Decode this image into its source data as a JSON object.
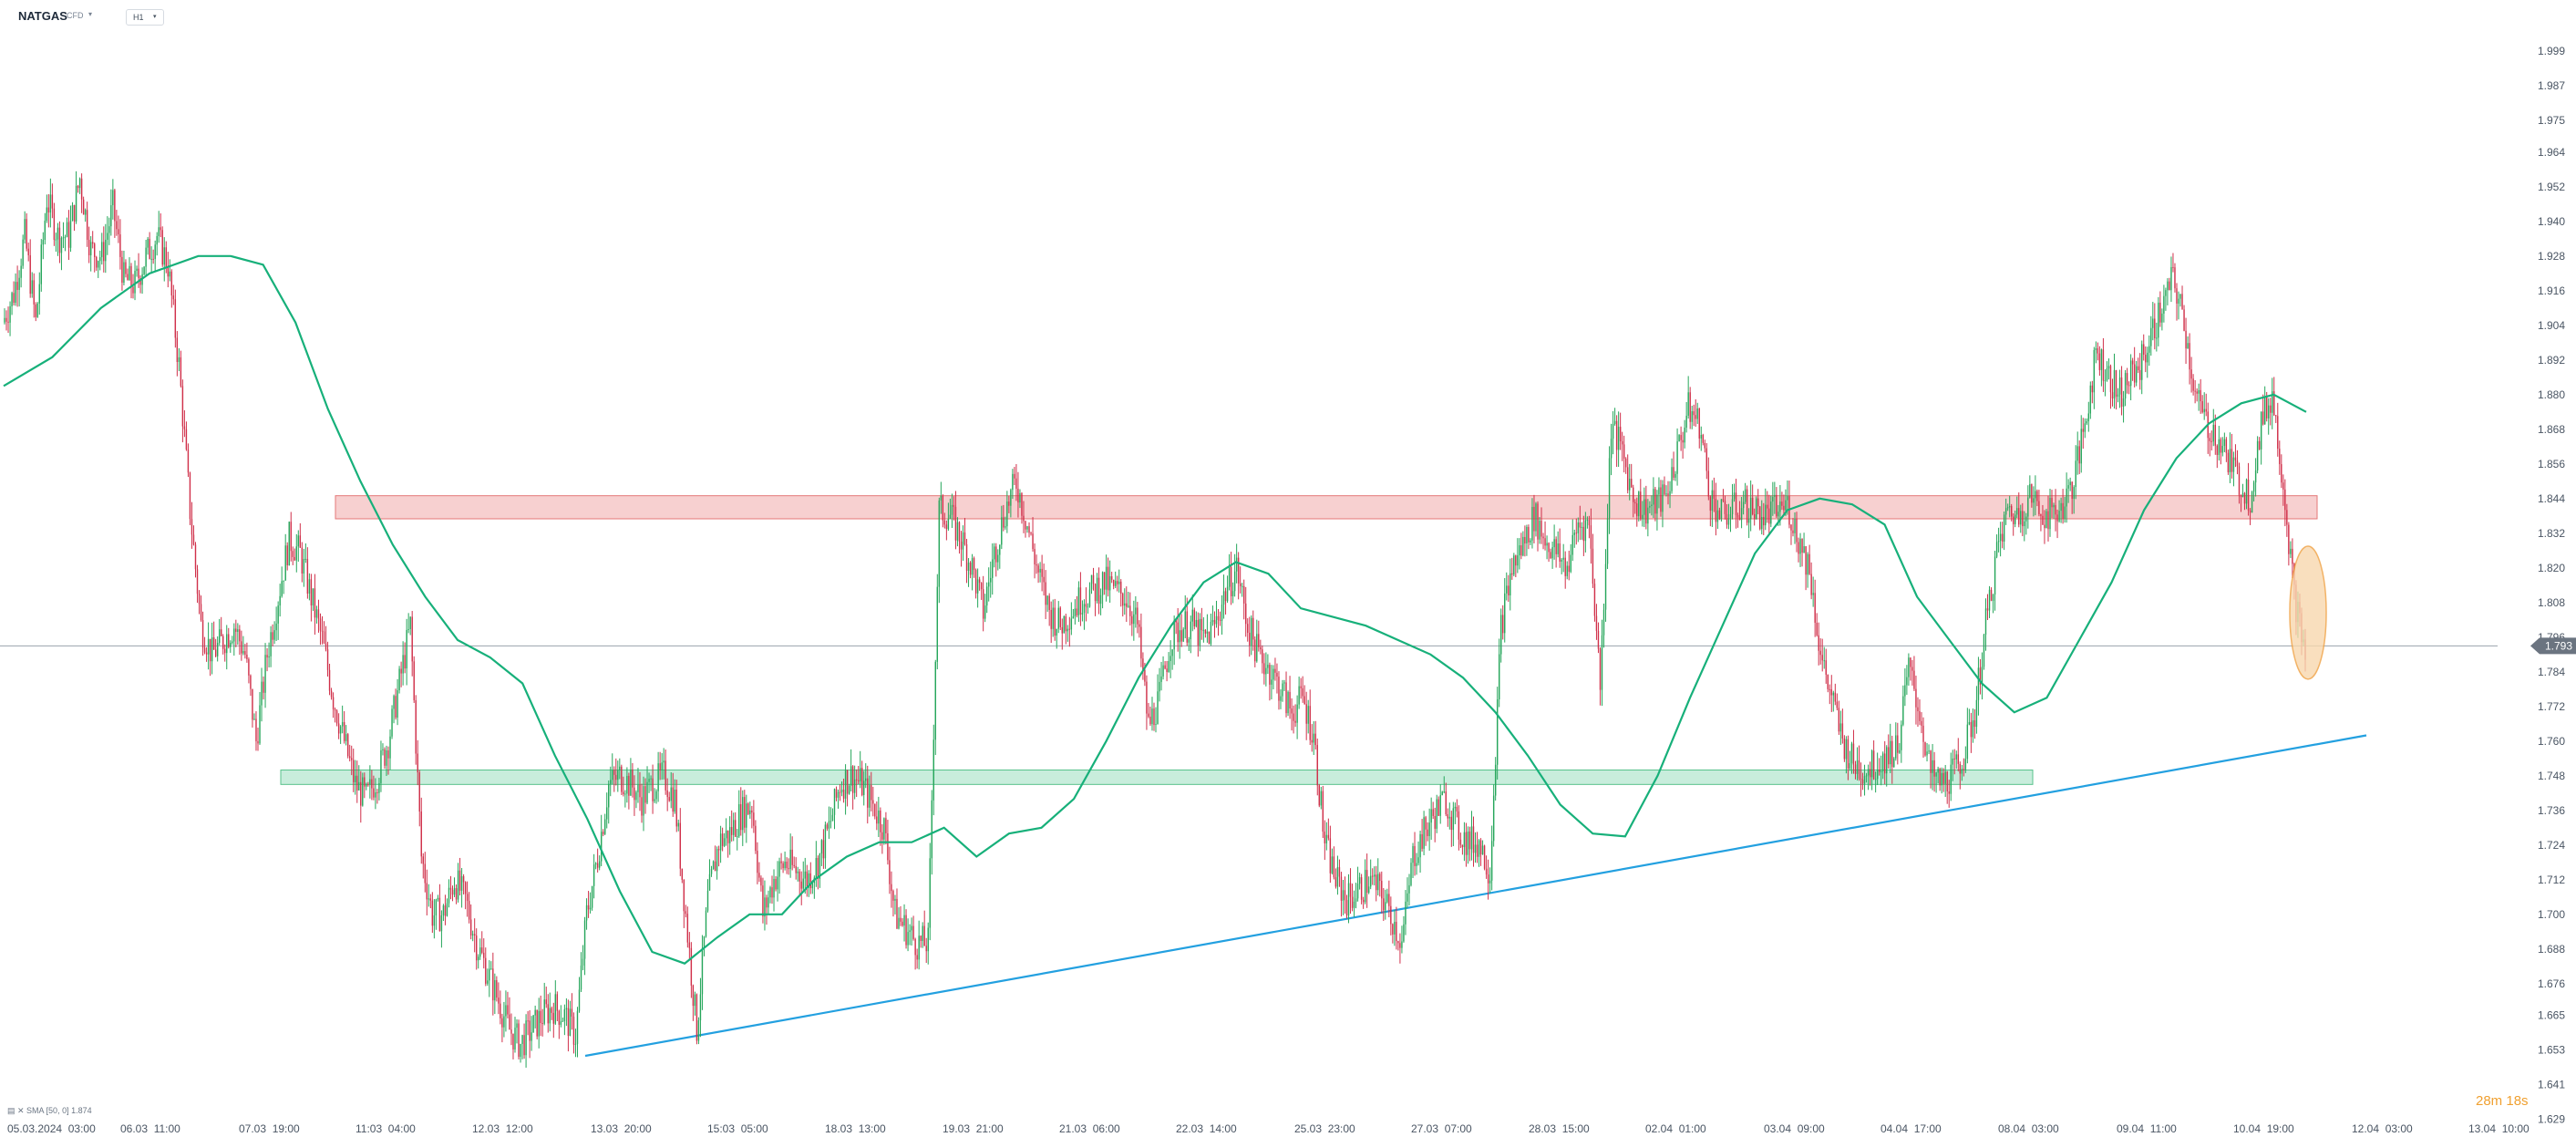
{
  "header": {
    "symbol": "NATGAS",
    "symbol_type": "CFD",
    "timeframe": "H1"
  },
  "indicator_legend": "SMA [50, 0] 1.874",
  "countdown": "28m 18s",
  "current_price_label": "1.793",
  "colors": {
    "bull": "#26a65b",
    "bear": "#d0304a",
    "sma": "#17b07a",
    "trendline": "#23a0e0",
    "resistance_fill": "#f6c8c8",
    "resistance_stroke": "#e06060",
    "support_fill": "#bfead6",
    "support_stroke": "#3cb878",
    "highlight_fill": "#f8d8ae",
    "highlight_stroke": "#f0a040",
    "price_badge": "#6b7480"
  },
  "chart_data": {
    "type": "candlestick",
    "timeframe": "H1",
    "y_ticks": [
      "1.999",
      "1.987",
      "1.975",
      "1.964",
      "1.952",
      "1.940",
      "1.928",
      "1.916",
      "1.904",
      "1.892",
      "1.880",
      "1.868",
      "1.856",
      "1.844",
      "1.832",
      "1.820",
      "1.808",
      "1.796",
      "1.784",
      "1.772",
      "1.760",
      "1.748",
      "1.736",
      "1.724",
      "1.712",
      "1.700",
      "1.688",
      "1.676",
      "1.665",
      "1.653",
      "1.641",
      "1.629"
    ],
    "x_ticks": [
      "05.03.2024  03:00",
      "06.03  11:00",
      "07.03  19:00",
      "11:03  04:00",
      "12.03  12:00",
      "13.03  20:00",
      "15:03  05:00",
      "18.03  13:00",
      "19.03  21:00",
      "21.03  06:00",
      "22.03  14:00",
      "25.03  23:00",
      "27.03  07:00",
      "28.03  15:00",
      "02.04  01:00",
      "03.04  09:00",
      "04.04  17:00",
      "08.04  03:00",
      "09.04  11:00",
      "10.04  19:00",
      "12.04  03:00",
      "13.04  10:00"
    ],
    "y_range": [
      1.629,
      2.005
    ],
    "current_price": 1.793,
    "resistance_zone": [
      1.837,
      1.845
    ],
    "support_zone": [
      1.745,
      1.75
    ],
    "trendline": {
      "from_price": 1.651,
      "to_price": 1.762
    },
    "price_path": [
      [
        0,
        1.905
      ],
      [
        1,
        1.915
      ],
      [
        2,
        1.935
      ],
      [
        3,
        1.905
      ],
      [
        4,
        1.948
      ],
      [
        5,
        1.935
      ],
      [
        6,
        1.935
      ],
      [
        7,
        1.955
      ],
      [
        8,
        1.93
      ],
      [
        9,
        1.928
      ],
      [
        10,
        1.945
      ],
      [
        11,
        1.92
      ],
      [
        12,
        1.918
      ],
      [
        13,
        1.928
      ],
      [
        14,
        1.935
      ],
      [
        15,
        1.925
      ],
      [
        16,
        1.89
      ],
      [
        17,
        1.84
      ],
      [
        18,
        1.8
      ],
      [
        19,
        1.79
      ],
      [
        20,
        1.795
      ],
      [
        21,
        1.8
      ],
      [
        22,
        1.79
      ],
      [
        23,
        1.76
      ],
      [
        24,
        1.79
      ],
      [
        25,
        1.81
      ],
      [
        26,
        1.83
      ],
      [
        27,
        1.825
      ],
      [
        28,
        1.81
      ],
      [
        29,
        1.795
      ],
      [
        30,
        1.775
      ],
      [
        31,
        1.76
      ],
      [
        32,
        1.745
      ],
      [
        33,
        1.74
      ],
      [
        34,
        1.748
      ],
      [
        35,
        1.76
      ],
      [
        36,
        1.78
      ],
      [
        37,
        1.8
      ],
      [
        38,
        1.72
      ],
      [
        39,
        1.7
      ],
      [
        40,
        1.7
      ],
      [
        41,
        1.712
      ],
      [
        42,
        1.705
      ],
      [
        43,
        1.69
      ],
      [
        44,
        1.68
      ],
      [
        45,
        1.67
      ],
      [
        46,
        1.66
      ],
      [
        47,
        1.655
      ],
      [
        48,
        1.66
      ],
      [
        49,
        1.665
      ],
      [
        50,
        1.668
      ],
      [
        51,
        1.665
      ],
      [
        52,
        1.658
      ],
      [
        53,
        1.7
      ],
      [
        54,
        1.72
      ],
      [
        55,
        1.745
      ],
      [
        56,
        1.748
      ],
      [
        57,
        1.745
      ],
      [
        58,
        1.74
      ],
      [
        59,
        1.745
      ],
      [
        60,
        1.748
      ],
      [
        61,
        1.74
      ],
      [
        62,
        1.7
      ],
      [
        63,
        1.66
      ],
      [
        64,
        1.705
      ],
      [
        65,
        1.725
      ],
      [
        66,
        1.728
      ],
      [
        67,
        1.735
      ],
      [
        68,
        1.738
      ],
      [
        69,
        1.7
      ],
      [
        70,
        1.712
      ],
      [
        71,
        1.718
      ],
      [
        72,
        1.715
      ],
      [
        73,
        1.712
      ],
      [
        74,
        1.718
      ],
      [
        75,
        1.73
      ],
      [
        76,
        1.745
      ],
      [
        77,
        1.748
      ],
      [
        78,
        1.745
      ],
      [
        79,
        1.738
      ],
      [
        80,
        1.73
      ],
      [
        81,
        1.7
      ],
      [
        82,
        1.695
      ],
      [
        83,
        1.69
      ],
      [
        84,
        1.69
      ],
      [
        85,
        1.84
      ],
      [
        86,
        1.838
      ],
      [
        87,
        1.83
      ],
      [
        88,
        1.82
      ],
      [
        89,
        1.805
      ],
      [
        90,
        1.825
      ],
      [
        91,
        1.84
      ],
      [
        92,
        1.85
      ],
      [
        93,
        1.835
      ],
      [
        94,
        1.818
      ],
      [
        95,
        1.805
      ],
      [
        96,
        1.8
      ],
      [
        97,
        1.805
      ],
      [
        98,
        1.81
      ],
      [
        99,
        1.812
      ],
      [
        100,
        1.815
      ],
      [
        101,
        1.812
      ],
      [
        102,
        1.81
      ],
      [
        103,
        1.8
      ],
      [
        104,
        1.765
      ],
      [
        105,
        1.775
      ],
      [
        106,
        1.795
      ],
      [
        107,
        1.8
      ],
      [
        108,
        1.8
      ],
      [
        109,
        1.795
      ],
      [
        110,
        1.8
      ],
      [
        111,
        1.812
      ],
      [
        112,
        1.82
      ],
      [
        113,
        1.8
      ],
      [
        114,
        1.79
      ],
      [
        115,
        1.785
      ],
      [
        116,
        1.778
      ],
      [
        117,
        1.77
      ],
      [
        118,
        1.775
      ],
      [
        119,
        1.762
      ],
      [
        120,
        1.725
      ],
      [
        121,
        1.712
      ],
      [
        122,
        1.705
      ],
      [
        123,
        1.708
      ],
      [
        124,
        1.712
      ],
      [
        125,
        1.708
      ],
      [
        126,
        1.7
      ],
      [
        127,
        1.69
      ],
      [
        128,
        1.72
      ],
      [
        129,
        1.728
      ],
      [
        130,
        1.735
      ],
      [
        131,
        1.74
      ],
      [
        132,
        1.73
      ],
      [
        133,
        1.725
      ],
      [
        134,
        1.725
      ],
      [
        135,
        1.715
      ],
      [
        136,
        1.8
      ],
      [
        137,
        1.82
      ],
      [
        138,
        1.828
      ],
      [
        139,
        1.838
      ],
      [
        140,
        1.83
      ],
      [
        141,
        1.825
      ],
      [
        142,
        1.82
      ],
      [
        143,
        1.835
      ],
      [
        144,
        1.835
      ],
      [
        145,
        1.78
      ],
      [
        146,
        1.87
      ],
      [
        147,
        1.86
      ],
      [
        148,
        1.845
      ],
      [
        149,
        1.84
      ],
      [
        150,
        1.842
      ],
      [
        151,
        1.845
      ],
      [
        152,
        1.86
      ],
      [
        153,
        1.875
      ],
      [
        154,
        1.87
      ],
      [
        155,
        1.845
      ],
      [
        156,
        1.838
      ],
      [
        157,
        1.84
      ],
      [
        158,
        1.842
      ],
      [
        159,
        1.84
      ],
      [
        160,
        1.838
      ],
      [
        161,
        1.84
      ],
      [
        162,
        1.842
      ],
      [
        163,
        1.83
      ],
      [
        164,
        1.82
      ],
      [
        165,
        1.79
      ],
      [
        166,
        1.775
      ],
      [
        167,
        1.76
      ],
      [
        168,
        1.752
      ],
      [
        169,
        1.75
      ],
      [
        170,
        1.752
      ],
      [
        171,
        1.755
      ],
      [
        172,
        1.758
      ],
      [
        173,
        1.785
      ],
      [
        174,
        1.77
      ],
      [
        175,
        1.748
      ],
      [
        176,
        1.745
      ],
      [
        177,
        1.748
      ],
      [
        178,
        1.755
      ],
      [
        179,
        1.77
      ],
      [
        180,
        1.8
      ],
      [
        181,
        1.825
      ],
      [
        182,
        1.84
      ],
      [
        183,
        1.838
      ],
      [
        184,
        1.845
      ],
      [
        185,
        1.84
      ],
      [
        186,
        1.838
      ],
      [
        187,
        1.842
      ],
      [
        188,
        1.85
      ],
      [
        189,
        1.87
      ],
      [
        190,
        1.895
      ],
      [
        191,
        1.888
      ],
      [
        192,
        1.88
      ],
      [
        193,
        1.885
      ],
      [
        194,
        1.89
      ],
      [
        195,
        1.9
      ],
      [
        196,
        1.91
      ],
      [
        197,
        1.92
      ],
      [
        198,
        1.905
      ],
      [
        199,
        1.88
      ],
      [
        200,
        1.87
      ],
      [
        201,
        1.865
      ],
      [
        202,
        1.858
      ],
      [
        203,
        1.85
      ],
      [
        204,
        1.845
      ],
      [
        205,
        1.87
      ],
      [
        206,
        1.88
      ],
      [
        207,
        1.85
      ],
      [
        208,
        1.81
      ],
      [
        209,
        1.79
      ]
    ],
    "sma_path": [
      [
        0,
        1.883
      ],
      [
        6,
        1.893
      ],
      [
        12,
        1.91
      ],
      [
        18,
        1.922
      ],
      [
        24,
        1.928
      ],
      [
        28,
        1.928
      ],
      [
        32,
        1.925
      ],
      [
        36,
        1.905
      ],
      [
        40,
        1.875
      ],
      [
        44,
        1.85
      ],
      [
        48,
        1.828
      ],
      [
        52,
        1.81
      ],
      [
        56,
        1.795
      ],
      [
        60,
        1.789
      ],
      [
        64,
        1.78
      ],
      [
        68,
        1.755
      ],
      [
        72,
        1.733
      ],
      [
        76,
        1.708
      ],
      [
        80,
        1.687
      ],
      [
        84,
        1.683
      ],
      [
        88,
        1.692
      ],
      [
        92,
        1.7
      ],
      [
        96,
        1.7
      ],
      [
        100,
        1.712
      ],
      [
        104,
        1.72
      ],
      [
        108,
        1.725
      ],
      [
        112,
        1.725
      ],
      [
        116,
        1.73
      ],
      [
        120,
        1.72
      ],
      [
        124,
        1.728
      ],
      [
        128,
        1.73
      ],
      [
        132,
        1.74
      ],
      [
        136,
        1.76
      ],
      [
        140,
        1.782
      ],
      [
        144,
        1.8
      ],
      [
        148,
        1.815
      ],
      [
        152,
        1.822
      ],
      [
        156,
        1.818
      ],
      [
        160,
        1.806
      ],
      [
        164,
        1.803
      ],
      [
        168,
        1.8
      ],
      [
        172,
        1.795
      ],
      [
        176,
        1.79
      ],
      [
        180,
        1.782
      ],
      [
        184,
        1.77
      ],
      [
        188,
        1.755
      ],
      [
        192,
        1.738
      ],
      [
        196,
        1.728
      ],
      [
        200,
        1.727
      ],
      [
        204,
        1.748
      ],
      [
        208,
        1.775
      ],
      [
        212,
        1.8
      ],
      [
        216,
        1.825
      ],
      [
        220,
        1.84
      ],
      [
        224,
        1.844
      ],
      [
        228,
        1.842
      ],
      [
        232,
        1.835
      ],
      [
        236,
        1.81
      ],
      [
        240,
        1.795
      ],
      [
        244,
        1.78
      ],
      [
        248,
        1.77
      ],
      [
        252,
        1.775
      ],
      [
        256,
        1.795
      ],
      [
        260,
        1.815
      ],
      [
        264,
        1.84
      ],
      [
        268,
        1.858
      ],
      [
        272,
        1.87
      ],
      [
        276,
        1.877
      ],
      [
        280,
        1.88
      ],
      [
        284,
        1.874
      ]
    ]
  }
}
